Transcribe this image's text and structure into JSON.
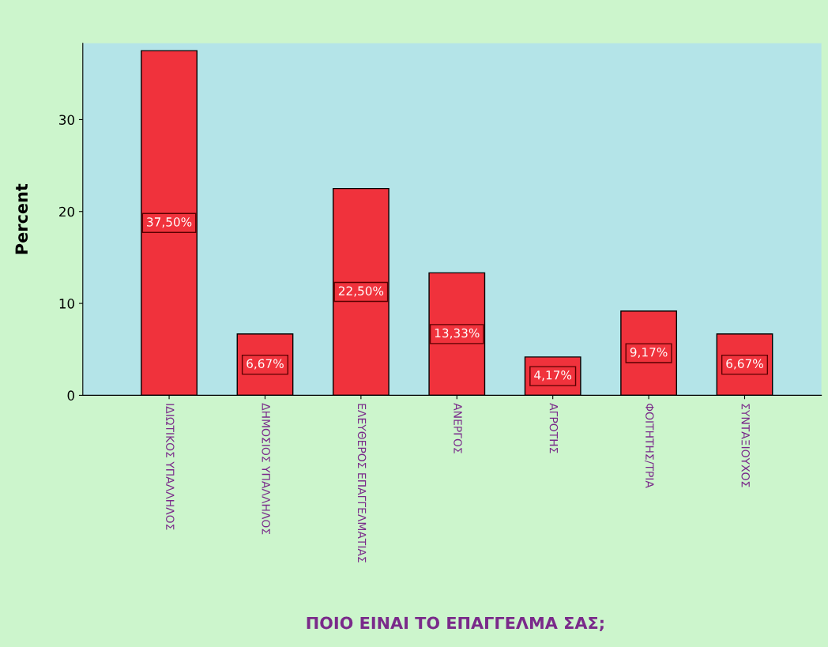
{
  "chart_data": {
    "type": "bar",
    "xlabel": "ΠΟΙΟ ΕΙΝΑΙ ΤΟ ΕΠΑΓΓΕΛΜΑ ΣΑΣ;",
    "ylabel": "Percent",
    "categories": [
      "ΙΔΙΩΤΙΚΟΣ ΥΠΑΛΛΗΛΟΣ",
      "ΔΗΜΟΣΙΟΣ ΥΠΑΛΛΗΛΟΣ",
      "ΕΛΕΥΘΕΡΟΣ ΕΠΑΓΓΕΛΜΑΤΙΑΣ",
      "ΑΝΕΡΓΟΣ",
      "ΑΓΡΟΤΗΣ",
      "ΦΟΙΤΗΤΗΣ/ΤΡΙΑ",
      "ΣΥΝΤΑΞΙΟΥΧΟΣ"
    ],
    "values": [
      37.5,
      6.67,
      22.5,
      13.33,
      4.17,
      9.17,
      6.67
    ],
    "value_labels": [
      "37,50%",
      "6,67%",
      "22,50%",
      "13,33%",
      "4,17%",
      "9,17%",
      "6,67%"
    ],
    "color": "#f0323c",
    "ylim": [
      0,
      38.3
    ],
    "yticks": [
      0,
      10,
      20,
      30
    ],
    "grid": false,
    "legend": false
  }
}
